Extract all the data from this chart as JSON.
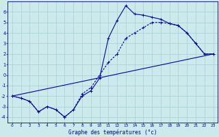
{
  "xlabel": "Graphe des températures (°c)",
  "background_color": "#cce9ec",
  "grid_color": "#aad4d8",
  "line_color": "#0000aa",
  "xlim": [
    -0.5,
    23.5
  ],
  "ylim": [
    -4.5,
    7.0
  ],
  "xticks": [
    0,
    1,
    2,
    3,
    4,
    5,
    6,
    7,
    8,
    9,
    10,
    11,
    12,
    13,
    14,
    15,
    16,
    17,
    18,
    19,
    20,
    21,
    22,
    23
  ],
  "yticks": [
    -4,
    -3,
    -2,
    -1,
    0,
    1,
    2,
    3,
    4,
    5,
    6
  ],
  "line1_x": [
    0,
    1,
    2,
    3,
    4,
    5,
    6,
    7,
    8,
    9,
    10,
    11,
    12,
    13,
    14,
    15,
    16,
    17,
    18,
    19,
    20,
    21,
    22,
    23
  ],
  "line1_y": [
    -2.0,
    -2.2,
    -2.5,
    -3.5,
    -3.0,
    -3.3,
    -4.0,
    -3.3,
    -2.0,
    -1.5,
    -0.3,
    3.5,
    5.2,
    6.6,
    5.8,
    5.7,
    5.5,
    5.3,
    4.9,
    4.7,
    4.0,
    3.0,
    2.0,
    2.0
  ],
  "line2_x": [
    0,
    1,
    2,
    3,
    4,
    5,
    6,
    7,
    8,
    9,
    10,
    11,
    12,
    13,
    14,
    15,
    16,
    17,
    18,
    19,
    20,
    21,
    22,
    23
  ],
  "line2_y": [
    -2.0,
    -2.2,
    -2.5,
    -3.5,
    -3.0,
    -3.3,
    -4.0,
    -3.3,
    -1.8,
    -1.2,
    0.0,
    1.2,
    2.0,
    3.5,
    4.0,
    4.5,
    5.0,
    5.0,
    4.9,
    4.7,
    4.0,
    3.0,
    2.0,
    2.0
  ],
  "line3_x": [
    0,
    23
  ],
  "line3_y": [
    -2.0,
    2.0
  ]
}
